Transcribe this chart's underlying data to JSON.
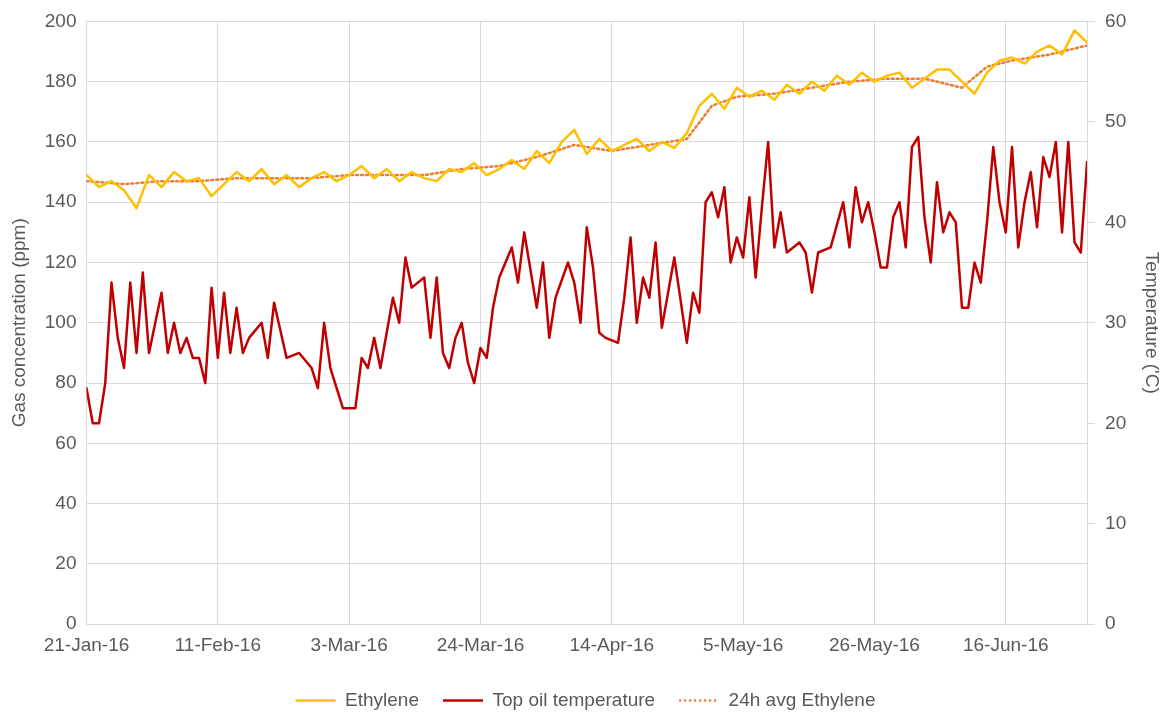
{
  "chart_data": {
    "type": "line",
    "ylabel": "Gas concentration (ppm)",
    "y2label": "Temperature ('C)",
    "xlim": [
      "2016-01-21",
      "2016-06-29"
    ],
    "xticks": [
      {
        "value": "2016-01-21",
        "label": "21-Jan-16"
      },
      {
        "value": "2016-02-11",
        "label": "11-Feb-16"
      },
      {
        "value": "2016-03-03",
        "label": "3-Mar-16"
      },
      {
        "value": "2016-03-24",
        "label": "24-Mar-16"
      },
      {
        "value": "2016-04-14",
        "label": "14-Apr-16"
      },
      {
        "value": "2016-05-05",
        "label": "5-May-16"
      },
      {
        "value": "2016-05-26",
        "label": "26-May-16"
      },
      {
        "value": "2016-06-16",
        "label": "16-Jun-16"
      }
    ],
    "ylim": [
      0,
      200
    ],
    "yticks": [
      0,
      20,
      40,
      60,
      80,
      100,
      120,
      140,
      160,
      180,
      200
    ],
    "y2lim": [
      0,
      60
    ],
    "y2ticks": [
      0,
      10,
      20,
      30,
      40,
      50,
      60
    ],
    "grid": true,
    "legend": "bottom",
    "marker": "none",
    "series": [
      {
        "name": "Ethylene",
        "color": "#ffc000",
        "line_style": "solid",
        "x": [
          "2016-01-21",
          "2016-01-23",
          "2016-01-25",
          "2016-01-27",
          "2016-01-29",
          "2016-01-31",
          "2016-02-02",
          "2016-02-04",
          "2016-02-06",
          "2016-02-08",
          "2016-02-10",
          "2016-02-12",
          "2016-02-14",
          "2016-02-16",
          "2016-02-18",
          "2016-02-20",
          "2016-02-22",
          "2016-02-24",
          "2016-02-26",
          "2016-02-28",
          "2016-03-01",
          "2016-03-03",
          "2016-03-05",
          "2016-03-07",
          "2016-03-09",
          "2016-03-11",
          "2016-03-13",
          "2016-03-15",
          "2016-03-17",
          "2016-03-19",
          "2016-03-21",
          "2016-03-23",
          "2016-03-25",
          "2016-03-27",
          "2016-03-29",
          "2016-03-31",
          "2016-04-02",
          "2016-04-04",
          "2016-04-06",
          "2016-04-08",
          "2016-04-10",
          "2016-04-12",
          "2016-04-14",
          "2016-04-16",
          "2016-04-18",
          "2016-04-20",
          "2016-04-22",
          "2016-04-24",
          "2016-04-26",
          "2016-04-28",
          "2016-04-30",
          "2016-05-02",
          "2016-05-04",
          "2016-05-06",
          "2016-05-08",
          "2016-05-10",
          "2016-05-12",
          "2016-05-14",
          "2016-05-16",
          "2016-05-18",
          "2016-05-20",
          "2016-05-22",
          "2016-05-24",
          "2016-05-26",
          "2016-05-28",
          "2016-05-30",
          "2016-06-01",
          "2016-06-03",
          "2016-06-05",
          "2016-06-07",
          "2016-06-09",
          "2016-06-11",
          "2016-06-13",
          "2016-06-15",
          "2016-06-17",
          "2016-06-19",
          "2016-06-21",
          "2016-06-23",
          "2016-06-25",
          "2016-06-27",
          "2016-06-29"
        ],
        "values": [
          149,
          145,
          147,
          144,
          138,
          149,
          145,
          150,
          147,
          148,
          142,
          146,
          150,
          147,
          151,
          146,
          149,
          145,
          148,
          150,
          147,
          149,
          152,
          148,
          151,
          147,
          150,
          148,
          147,
          151,
          150,
          153,
          149,
          151,
          154,
          151,
          157,
          153,
          160,
          164,
          156,
          161,
          157,
          159,
          161,
          157,
          160,
          158,
          163,
          172,
          176,
          171,
          178,
          175,
          177,
          174,
          179,
          176,
          180,
          177,
          182,
          179,
          183,
          180,
          182,
          183,
          178,
          181,
          184,
          184,
          180,
          176,
          183,
          187,
          188,
          186,
          190,
          192,
          189,
          197,
          193
        ]
      },
      {
        "name": "Top oil temperature",
        "color": "#c00000",
        "line_style": "solid",
        "axis": "y2",
        "x": [
          "2016-01-21",
          "2016-01-22",
          "2016-01-23",
          "2016-01-24",
          "2016-01-25",
          "2016-01-26",
          "2016-01-27",
          "2016-01-28",
          "2016-01-29",
          "2016-01-30",
          "2016-01-31",
          "2016-02-01",
          "2016-02-02",
          "2016-02-03",
          "2016-02-04",
          "2016-02-05",
          "2016-02-06",
          "2016-02-07",
          "2016-02-08",
          "2016-02-09",
          "2016-02-10",
          "2016-02-11",
          "2016-02-12",
          "2016-02-13",
          "2016-02-14",
          "2016-02-15",
          "2016-02-16",
          "2016-02-18",
          "2016-02-19",
          "2016-02-20",
          "2016-02-22",
          "2016-02-24",
          "2016-02-26",
          "2016-02-27",
          "2016-02-28",
          "2016-02-29",
          "2016-03-02",
          "2016-03-04",
          "2016-03-05",
          "2016-03-06",
          "2016-03-07",
          "2016-03-08",
          "2016-03-10",
          "2016-03-11",
          "2016-03-12",
          "2016-03-13",
          "2016-03-15",
          "2016-03-16",
          "2016-03-17",
          "2016-03-18",
          "2016-03-19",
          "2016-03-20",
          "2016-03-21",
          "2016-03-22",
          "2016-03-23",
          "2016-03-24",
          "2016-03-25",
          "2016-03-26",
          "2016-03-27",
          "2016-03-28",
          "2016-03-29",
          "2016-03-30",
          "2016-03-31",
          "2016-04-02",
          "2016-04-03",
          "2016-04-04",
          "2016-04-05",
          "2016-04-07",
          "2016-04-08",
          "2016-04-09",
          "2016-04-10",
          "2016-04-11",
          "2016-04-12",
          "2016-04-13",
          "2016-04-15",
          "2016-04-16",
          "2016-04-17",
          "2016-04-18",
          "2016-04-19",
          "2016-04-20",
          "2016-04-21",
          "2016-04-22",
          "2016-04-24",
          "2016-04-26",
          "2016-04-27",
          "2016-04-28",
          "2016-04-29",
          "2016-04-30",
          "2016-05-01",
          "2016-05-02",
          "2016-05-03",
          "2016-05-04",
          "2016-05-05",
          "2016-05-06",
          "2016-05-07",
          "2016-05-08",
          "2016-05-09",
          "2016-05-10",
          "2016-05-11",
          "2016-05-12",
          "2016-05-13",
          "2016-05-14",
          "2016-05-15",
          "2016-05-16",
          "2016-05-17",
          "2016-05-19",
          "2016-05-21",
          "2016-05-22",
          "2016-05-23",
          "2016-05-24",
          "2016-05-25",
          "2016-05-26",
          "2016-05-27",
          "2016-05-28",
          "2016-05-29",
          "2016-05-30",
          "2016-05-31",
          "2016-06-01",
          "2016-06-02",
          "2016-06-03",
          "2016-06-04",
          "2016-06-05",
          "2016-06-06",
          "2016-06-07",
          "2016-06-08",
          "2016-06-09",
          "2016-06-10",
          "2016-06-11",
          "2016-06-12",
          "2016-06-13",
          "2016-06-14",
          "2016-06-15",
          "2016-06-16",
          "2016-06-17",
          "2016-06-18",
          "2016-06-19",
          "2016-06-20",
          "2016-06-21",
          "2016-06-22",
          "2016-06-23",
          "2016-06-24",
          "2016-06-25",
          "2016-06-26",
          "2016-06-27",
          "2016-06-28",
          "2016-06-29"
        ],
        "values": [
          23.5,
          20,
          20,
          24,
          34,
          28.5,
          25.5,
          34,
          27,
          35,
          27,
          30,
          33,
          27,
          30,
          27,
          28.5,
          26.5,
          26.5,
          24,
          33.5,
          26.5,
          33,
          27,
          31.5,
          27,
          28.5,
          30,
          26.5,
          32,
          26.5,
          27,
          25.5,
          23.5,
          30,
          25.5,
          21.5,
          21.5,
          26.5,
          25.5,
          28.5,
          25.5,
          32.5,
          30,
          36.5,
          33.5,
          34.5,
          28.5,
          34.5,
          27,
          25.5,
          28.5,
          30,
          26,
          24,
          27.5,
          26.5,
          31.5,
          34.5,
          36,
          37.5,
          34,
          39,
          31.5,
          36,
          28.5,
          32.5,
          36,
          34,
          30,
          39.5,
          35.5,
          29,
          28.5,
          28,
          32.5,
          38.5,
          30,
          34.5,
          32.5,
          38,
          29.5,
          36.5,
          28,
          33,
          31,
          42,
          43,
          40.5,
          43.5,
          36,
          38.5,
          36.5,
          42.5,
          34.5,
          41.5,
          48,
          37.5,
          41,
          37,
          37.5,
          38,
          37,
          33,
          37,
          37.5,
          42,
          37.5,
          43.5,
          40,
          42,
          39,
          35.5,
          35.5,
          40.5,
          42,
          37.5,
          47.5,
          48.5,
          40.5,
          36,
          44,
          39,
          41,
          40,
          31.5,
          31.5,
          36,
          34,
          40,
          47.5,
          42,
          39,
          47.5,
          37.5,
          42,
          45,
          39.5,
          46.5,
          44.5,
          48,
          39,
          48,
          38,
          37,
          46
        ]
      },
      {
        "name": "24h avg Ethylene",
        "color": "#ed7d31",
        "line_style": "dotted",
        "x": [
          "2016-01-21",
          "2016-01-27",
          "2016-02-02",
          "2016-02-08",
          "2016-02-14",
          "2016-02-20",
          "2016-02-26",
          "2016-03-03",
          "2016-03-09",
          "2016-03-15",
          "2016-03-21",
          "2016-03-27",
          "2016-04-02",
          "2016-04-08",
          "2016-04-14",
          "2016-04-20",
          "2016-04-26",
          "2016-04-30",
          "2016-05-04",
          "2016-05-10",
          "2016-05-16",
          "2016-05-22",
          "2016-05-28",
          "2016-06-03",
          "2016-06-09",
          "2016-06-13",
          "2016-06-17",
          "2016-06-23",
          "2016-06-29"
        ],
        "values": [
          147,
          146,
          147,
          147,
          148,
          148,
          148,
          149,
          149,
          149,
          151,
          152,
          155,
          159,
          157,
          159,
          161,
          172,
          175,
          176,
          178,
          180,
          181,
          181,
          178,
          185,
          187,
          189,
          192
        ]
      }
    ]
  }
}
